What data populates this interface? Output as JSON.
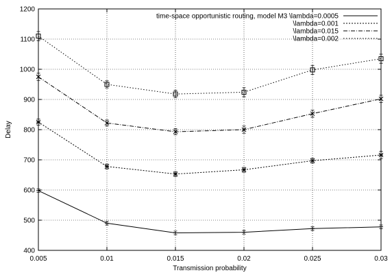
{
  "chart_data": {
    "type": "line",
    "xlabel": "Transmission probability",
    "ylabel": "Delay",
    "x": [
      0.005,
      0.01,
      0.015,
      0.02,
      0.025,
      0.03
    ],
    "x_tick_labels": [
      "0.005",
      "0.01",
      "0.015",
      "0.02",
      "0.025",
      "0.03"
    ],
    "xlim": [
      0.005,
      0.03
    ],
    "ylim": [
      400,
      1200
    ],
    "y_ticks": [
      400,
      500,
      600,
      700,
      800,
      900,
      1000,
      1100,
      1200
    ],
    "grid": true,
    "legend_position": "top-right",
    "series": [
      {
        "name": "time-space opportunistic routing, model M3 \\lambda=0.0005",
        "values": [
          598,
          490,
          458,
          460,
          472,
          478
        ],
        "errors": [
          6,
          6,
          6,
          6,
          6,
          6
        ],
        "marker": "plus",
        "dash": "solid"
      },
      {
        "name": "\\lambda=0.001",
        "values": [
          825,
          678,
          653,
          667,
          697,
          716
        ],
        "errors": [
          10,
          8,
          8,
          8,
          8,
          12
        ],
        "marker": "star",
        "dash": "dotted"
      },
      {
        "name": "\\lambda=0.015",
        "values": [
          975,
          822,
          793,
          800,
          853,
          902
        ],
        "errors": [
          12,
          10,
          10,
          12,
          12,
          12
        ],
        "marker": "x",
        "dash": "dashdot"
      },
      {
        "name": "\\lambda=0.002",
        "values": [
          1110,
          950,
          918,
          924,
          998,
          1035
        ],
        "errors": [
          15,
          12,
          12,
          15,
          15,
          15
        ],
        "marker": "square",
        "dash": "fine-dotted"
      }
    ]
  }
}
